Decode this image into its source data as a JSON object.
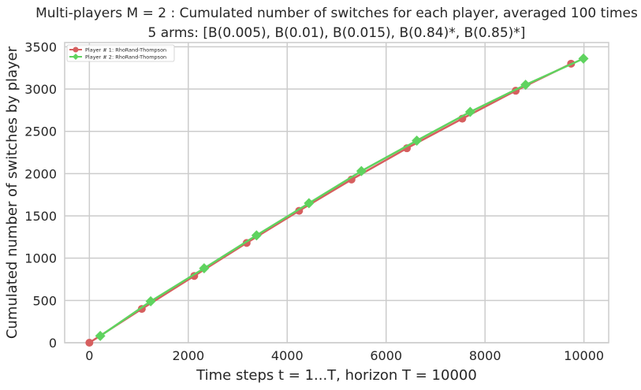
{
  "chart_data": {
    "type": "line",
    "title_line1": "Multi-players M = 2 : Cumulated number of switches for each player, averaged 100 times",
    "title_line2": "5 arms: [B(0.005), B(0.01), B(0.015), B(0.84)*, B(0.85)*]",
    "xlabel": "Time steps t = 1...T, horizon T = 10000",
    "ylabel": "Cumulated number of switches by player",
    "xlim": [
      -500,
      10500
    ],
    "ylim": [
      0,
      3550
    ],
    "xticks": [
      0,
      2000,
      4000,
      6000,
      8000,
      10000
    ],
    "xtick_labels": [
      "0",
      "2000",
      "4000",
      "6000",
      "8000",
      "10000"
    ],
    "yticks": [
      0,
      500,
      1000,
      1500,
      2000,
      2500,
      3000,
      3500
    ],
    "ytick_labels": [
      "0",
      "500",
      "1000",
      "1500",
      "2000",
      "2500",
      "3000",
      "3500"
    ],
    "grid": true,
    "legend_position": "top-left",
    "series": [
      {
        "name": "Player # 1: RhoRand-Thompson",
        "color": "#d65f5f",
        "marker": "circle",
        "x": [
          0,
          1060,
          2120,
          3180,
          4240,
          5300,
          6420,
          7540,
          8620,
          9740
        ],
        "y": [
          0,
          400,
          790,
          1180,
          1560,
          1930,
          2300,
          2650,
          2980,
          3300
        ]
      },
      {
        "name": "Player # 2: RhoRand-Thompson",
        "color": "#5fd35f",
        "marker": "diamond",
        "x": [
          220,
          1240,
          2320,
          3380,
          4440,
          5500,
          6620,
          7700,
          8820,
          9990
        ],
        "y": [
          80,
          490,
          880,
          1270,
          1650,
          2030,
          2390,
          2730,
          3050,
          3360
        ]
      }
    ]
  }
}
